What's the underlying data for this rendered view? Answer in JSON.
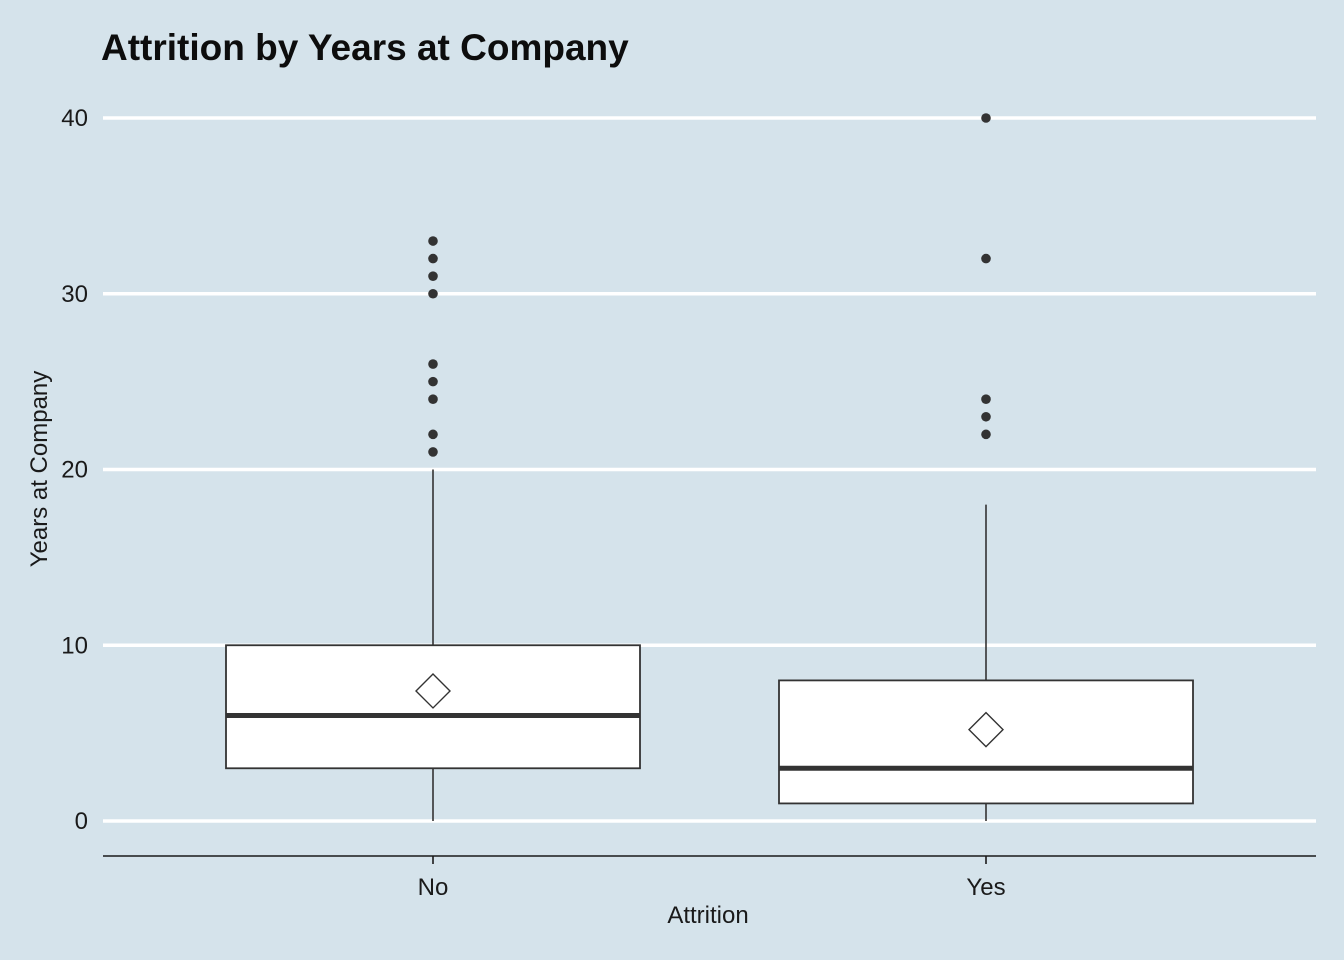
{
  "chart_data": {
    "type": "boxplot",
    "title": "Attrition by Years at Company",
    "xlabel": "Attrition",
    "ylabel": "Years at Company",
    "ylim": [
      -2,
      42
    ],
    "yticks": [
      0,
      10,
      20,
      30,
      40
    ],
    "grid": "horizontal major lines",
    "categories": [
      "No",
      "Yes"
    ],
    "boxes": [
      {
        "category": "No",
        "whisker_low": 0,
        "q1": 3,
        "median": 6,
        "q3": 10,
        "whisker_high": 20,
        "mean": 7.4,
        "outliers": [
          21,
          22,
          24,
          25,
          26,
          30,
          31,
          32,
          33
        ]
      },
      {
        "category": "Yes",
        "whisker_low": 0,
        "q1": 1,
        "median": 3,
        "q3": 8,
        "whisker_high": 18,
        "mean": 5.2,
        "outliers": [
          22,
          23,
          24,
          32,
          40
        ]
      }
    ],
    "colors": {
      "background": "#d5e3eb",
      "box_fill": "#ffffff",
      "line": "#333333",
      "grid": "#ffffff"
    }
  }
}
